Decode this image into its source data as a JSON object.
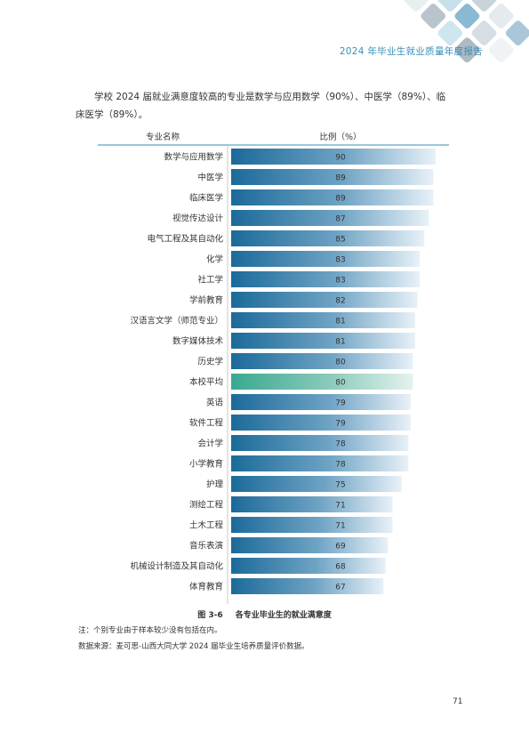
{
  "header": {
    "title": "2024 年毕业生就业质量年度报告"
  },
  "intro_text": "学校 2024 届就业满意度较高的专业是数学与应用数学（90%）、中医学（89%）、临床医学（89%）。",
  "figure": {
    "number": "图 3-6",
    "title": "各专业毕业生的就业满意度"
  },
  "notes": {
    "note1": "注：个别专业由于样本较少没有包括在内。",
    "note2": "数据来源：麦可思-山西大同大学 2024 届毕业生培养质量评价数据。"
  },
  "page_number": "71",
  "colors": {
    "accent": "#3a8fb7",
    "bar_dark": "#1b6a9a",
    "bar_light": "#e8f1f8",
    "highlight_dark": "#3aa890",
    "highlight_light": "#e4f3ee"
  },
  "chart_data": {
    "type": "bar",
    "orientation": "horizontal",
    "header_category": "专业名称",
    "header_value": "比例（%）",
    "categories": [
      "数学与应用数学",
      "中医学",
      "临床医学",
      "视觉传达设计",
      "电气工程及其自动化",
      "化学",
      "社工学",
      "学前教育",
      "汉语言文学（师范专业）",
      "数字媒体技术",
      "历史学",
      "本校平均",
      "英语",
      "软件工程",
      "会计学",
      "小学教育",
      "护理",
      "测绘工程",
      "土木工程",
      "音乐表演",
      "机械设计制造及其自动化",
      "体育教育"
    ],
    "values": [
      90,
      89,
      89,
      87,
      85,
      83,
      83,
      82,
      81,
      81,
      80,
      80,
      79,
      79,
      78,
      78,
      75,
      71,
      71,
      69,
      68,
      67
    ],
    "highlight_category": "本校平均",
    "xlim": [
      0,
      100
    ]
  }
}
